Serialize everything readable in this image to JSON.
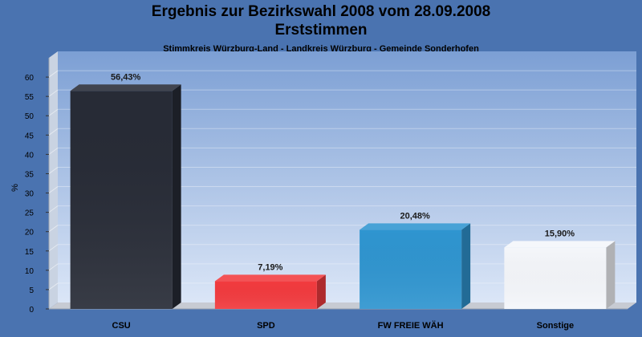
{
  "header": {
    "title": "Ergebnis zur Bezirkswahl 2008 vom 28.09.2008",
    "subtitle": "Erststimmen",
    "detail": "Stimmkreis Würzburg-Land - Landkreis Würzburg - Gemeinde Sonderhofen"
  },
  "chart_data": {
    "type": "bar",
    "title": "Ergebnis zur Bezirkswahl 2008 vom 28.09.2008",
    "subtitle": "Erststimmen",
    "xlabel": "",
    "ylabel": "%",
    "ylim": [
      0,
      65
    ],
    "yticks": [
      0,
      5,
      10,
      15,
      20,
      25,
      30,
      35,
      40,
      45,
      50,
      55,
      60
    ],
    "grid": true,
    "categories": [
      "CSU",
      "SPD",
      "FW FREIE WÄH",
      "Sonstige"
    ],
    "values": [
      56.43,
      7.19,
      20.48,
      15.9
    ],
    "labels": [
      "56,43%",
      "7,19%",
      "20,48%",
      "15,90%"
    ],
    "colors": [
      "#272b36",
      "#f23a3e",
      "#2f95d0",
      "#f4f6fa"
    ]
  }
}
